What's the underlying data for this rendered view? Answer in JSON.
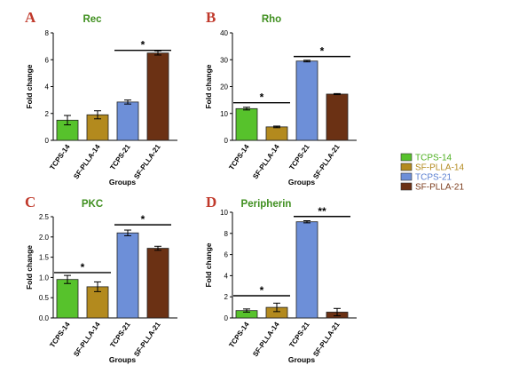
{
  "legend": {
    "items": [
      {
        "label": "TCPS-14",
        "color": "#57c22c",
        "text_color": "#4caf1e"
      },
      {
        "label": "SF-PLLA-14",
        "color": "#b38a1e",
        "text_color": "#b38a1e"
      },
      {
        "label": "TCPS-21",
        "color": "#6d8fd8",
        "text_color": "#5a7fd0"
      },
      {
        "label": "SF-PLLA-21",
        "color": "#6b3114",
        "text_color": "#7a3a1a"
      }
    ]
  },
  "chart_data": [
    {
      "panel": "A",
      "type": "bar",
      "title": "Rec",
      "xlabel": "Groups",
      "ylabel": "Fold change",
      "categories": [
        "TCPS-14",
        "SF-PLLA-14",
        "TCPS-21",
        "SF-PLLA-21"
      ],
      "values": [
        1.5,
        1.9,
        2.85,
        6.5
      ],
      "errors": [
        0.35,
        0.3,
        0.15,
        0.15
      ],
      "ylim": [
        0,
        8
      ],
      "yticks": [
        0,
        2,
        4,
        6,
        8
      ],
      "tick_decimals": 0,
      "significance": [
        {
          "from": 2,
          "to": 3,
          "y": 6.7,
          "label": "*"
        }
      ]
    },
    {
      "panel": "B",
      "type": "bar",
      "title": "Rho",
      "xlabel": "Groups",
      "ylabel": "Fold change",
      "categories": [
        "TCPS-14",
        "SF-PLLA-14",
        "TCPS-21",
        "SF-PLLA-21"
      ],
      "values": [
        11.8,
        5.0,
        29.5,
        17.2
      ],
      "errors": [
        0.5,
        0.3,
        0.3,
        0.2
      ],
      "ylim": [
        0,
        40
      ],
      "yticks": [
        0,
        10,
        20,
        30,
        40
      ],
      "tick_decimals": 0,
      "significance": [
        {
          "from": 0,
          "to": 1,
          "y": 14.0,
          "label": "*"
        },
        {
          "from": 2,
          "to": 3,
          "y": 31.2,
          "label": "*"
        }
      ]
    },
    {
      "panel": "C",
      "type": "bar",
      "title": "PKC",
      "xlabel": "Groups",
      "ylabel": "Fold change",
      "categories": [
        "TCPS-14",
        "SF-PLLA-14",
        "TCPS-21",
        "SF-PLLA-21"
      ],
      "values": [
        0.95,
        0.77,
        2.1,
        1.72
      ],
      "errors": [
        0.1,
        0.12,
        0.07,
        0.05
      ],
      "ylim": [
        0,
        2.5
      ],
      "yticks": [
        0,
        0.5,
        1.0,
        1.5,
        2.0,
        2.5
      ],
      "tick_decimals": 1,
      "significance": [
        {
          "from": 0,
          "to": 1,
          "y": 1.12,
          "label": "*"
        },
        {
          "from": 2,
          "to": 3,
          "y": 2.3,
          "label": "*"
        }
      ]
    },
    {
      "panel": "D",
      "type": "bar",
      "title": "Peripherin",
      "xlabel": "Groups",
      "ylabel": "Fold change",
      "categories": [
        "TCPS-14",
        "SF-PLLA-14",
        "TCPS-21",
        "SF-PLLA-21"
      ],
      "values": [
        0.7,
        1.0,
        9.1,
        0.55
      ],
      "errors": [
        0.15,
        0.4,
        0.1,
        0.35
      ],
      "ylim": [
        0,
        10
      ],
      "yticks": [
        0,
        2,
        4,
        6,
        8,
        10
      ],
      "tick_decimals": 0,
      "significance": [
        {
          "from": 0,
          "to": 1,
          "y": 2.1,
          "label": "*"
        },
        {
          "from": 2,
          "to": 3,
          "y": 9.6,
          "label": "**"
        }
      ]
    }
  ]
}
